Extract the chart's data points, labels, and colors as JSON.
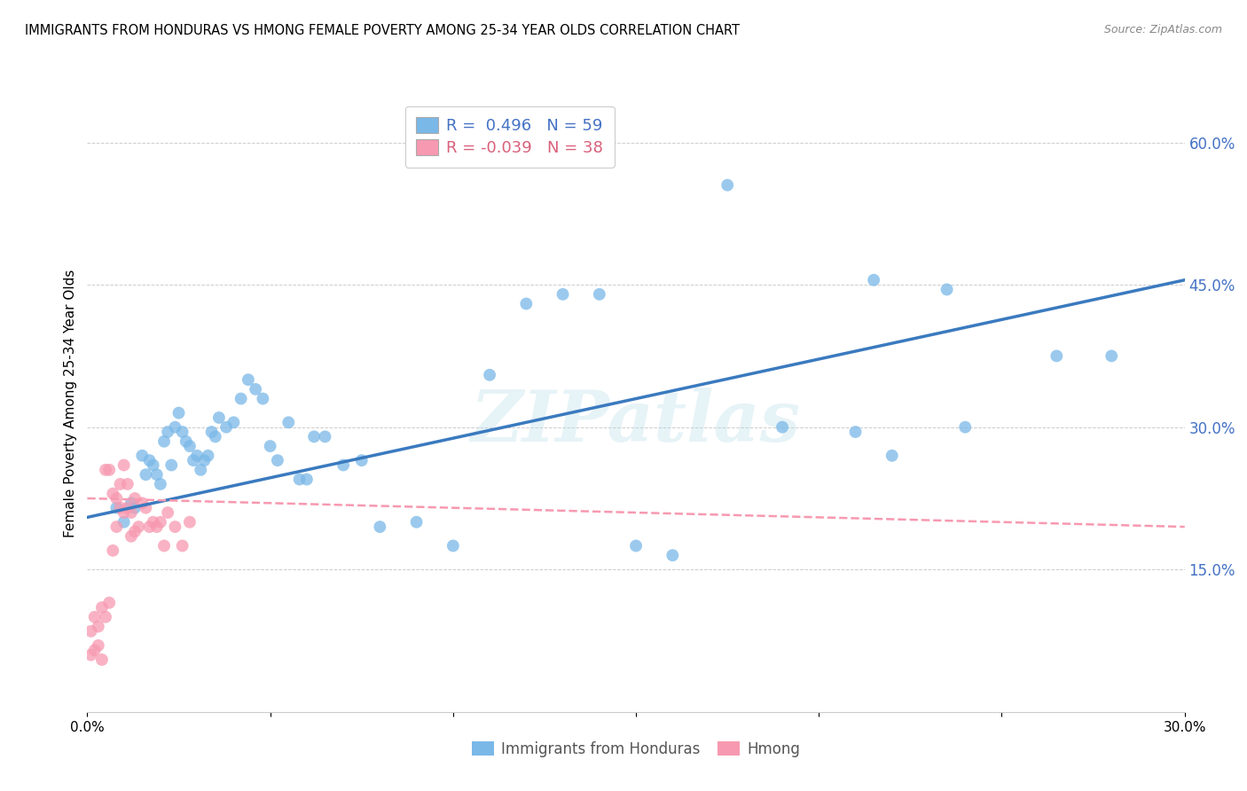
{
  "title": "IMMIGRANTS FROM HONDURAS VS HMONG FEMALE POVERTY AMONG 25-34 YEAR OLDS CORRELATION CHART",
  "source": "Source: ZipAtlas.com",
  "ylabel": "Female Poverty Among 25-34 Year Olds",
  "xlim": [
    0.0,
    0.3
  ],
  "ylim": [
    0.0,
    0.65
  ],
  "xticks": [
    0.0,
    0.05,
    0.1,
    0.15,
    0.2,
    0.25,
    0.3
  ],
  "xtick_labels": [
    "0.0%",
    "",
    "",
    "",
    "",
    "",
    "30.0%"
  ],
  "ytick_right": [
    0.15,
    0.3,
    0.45,
    0.6
  ],
  "ytick_right_labels": [
    "15.0%",
    "30.0%",
    "45.0%",
    "60.0%"
  ],
  "blue_R": 0.496,
  "blue_N": 59,
  "pink_R": -0.039,
  "pink_N": 38,
  "blue_color": "#7ab8e8",
  "pink_color": "#f799b0",
  "blue_line_color": "#3a7abf",
  "pink_line_color": "#f799b0",
  "watermark": "ZIPatlas",
  "blue_line_x0": 0.0,
  "blue_line_y0": 0.205,
  "blue_line_x1": 0.3,
  "blue_line_y1": 0.455,
  "pink_line_x0": 0.0,
  "pink_line_y0": 0.225,
  "pink_line_x1": 0.3,
  "pink_line_y1": 0.195,
  "blue_scatter_x": [
    0.008,
    0.01,
    0.012,
    0.013,
    0.015,
    0.016,
    0.017,
    0.018,
    0.019,
    0.02,
    0.021,
    0.022,
    0.023,
    0.024,
    0.025,
    0.026,
    0.027,
    0.028,
    0.029,
    0.03,
    0.031,
    0.032,
    0.033,
    0.034,
    0.035,
    0.036,
    0.038,
    0.04,
    0.042,
    0.044,
    0.046,
    0.048,
    0.05,
    0.052,
    0.055,
    0.058,
    0.06,
    0.062,
    0.065,
    0.07,
    0.075,
    0.08,
    0.09,
    0.1,
    0.11,
    0.12,
    0.13,
    0.14,
    0.15,
    0.16,
    0.175,
    0.19,
    0.21,
    0.22,
    0.24,
    0.215,
    0.235,
    0.265,
    0.28
  ],
  "blue_scatter_y": [
    0.215,
    0.2,
    0.22,
    0.215,
    0.27,
    0.25,
    0.265,
    0.26,
    0.25,
    0.24,
    0.285,
    0.295,
    0.26,
    0.3,
    0.315,
    0.295,
    0.285,
    0.28,
    0.265,
    0.27,
    0.255,
    0.265,
    0.27,
    0.295,
    0.29,
    0.31,
    0.3,
    0.305,
    0.33,
    0.35,
    0.34,
    0.33,
    0.28,
    0.265,
    0.305,
    0.245,
    0.245,
    0.29,
    0.29,
    0.26,
    0.265,
    0.195,
    0.2,
    0.175,
    0.355,
    0.43,
    0.44,
    0.44,
    0.175,
    0.165,
    0.555,
    0.3,
    0.295,
    0.27,
    0.3,
    0.455,
    0.445,
    0.375,
    0.375
  ],
  "pink_scatter_x": [
    0.001,
    0.001,
    0.002,
    0.002,
    0.003,
    0.003,
    0.004,
    0.004,
    0.005,
    0.005,
    0.006,
    0.006,
    0.007,
    0.007,
    0.008,
    0.008,
    0.009,
    0.009,
    0.01,
    0.01,
    0.011,
    0.011,
    0.012,
    0.012,
    0.013,
    0.013,
    0.014,
    0.015,
    0.016,
    0.017,
    0.018,
    0.019,
    0.02,
    0.021,
    0.022,
    0.024,
    0.026,
    0.028
  ],
  "pink_scatter_y": [
    0.085,
    0.06,
    0.065,
    0.1,
    0.09,
    0.07,
    0.11,
    0.055,
    0.1,
    0.255,
    0.115,
    0.255,
    0.17,
    0.23,
    0.195,
    0.225,
    0.24,
    0.215,
    0.21,
    0.26,
    0.215,
    0.24,
    0.21,
    0.185,
    0.225,
    0.19,
    0.195,
    0.22,
    0.215,
    0.195,
    0.2,
    0.195,
    0.2,
    0.175,
    0.21,
    0.195,
    0.175,
    0.2
  ]
}
